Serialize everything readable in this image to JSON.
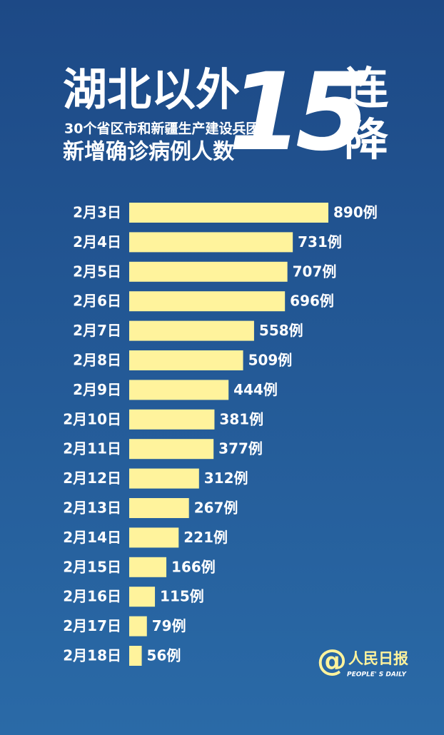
{
  "chart_data": {
    "type": "bar",
    "orientation": "horizontal",
    "title_lines": [
      "湖北以外",
      "30个省区市和新疆生产建设兵团",
      "新增确诊病例人数"
    ],
    "headline": [
      "15",
      "连",
      "降"
    ],
    "categories": [
      "2月3日",
      "2月4日",
      "2月5日",
      "2月6日",
      "2月7日",
      "2月8日",
      "2月9日",
      "2月10日",
      "2月11日",
      "2月12日",
      "2月13日",
      "2月14日",
      "2月15日",
      "2月16日",
      "2月17日",
      "2月18日"
    ],
    "values": [
      890,
      731,
      707,
      696,
      558,
      509,
      444,
      381,
      377,
      312,
      267,
      221,
      166,
      115,
      79,
      56
    ],
    "value_labels": [
      "890例",
      "731例",
      "707例",
      "696例",
      "558例",
      "509例",
      "444例",
      "381例",
      "377例",
      "312例",
      "267例",
      "221例",
      "166例",
      "115例",
      "79例",
      "56例"
    ],
    "color": "#fff39c"
  },
  "source": {
    "symbol": "@",
    "name": "人民日报",
    "name_en": "PEOPLE' S DAILY"
  }
}
